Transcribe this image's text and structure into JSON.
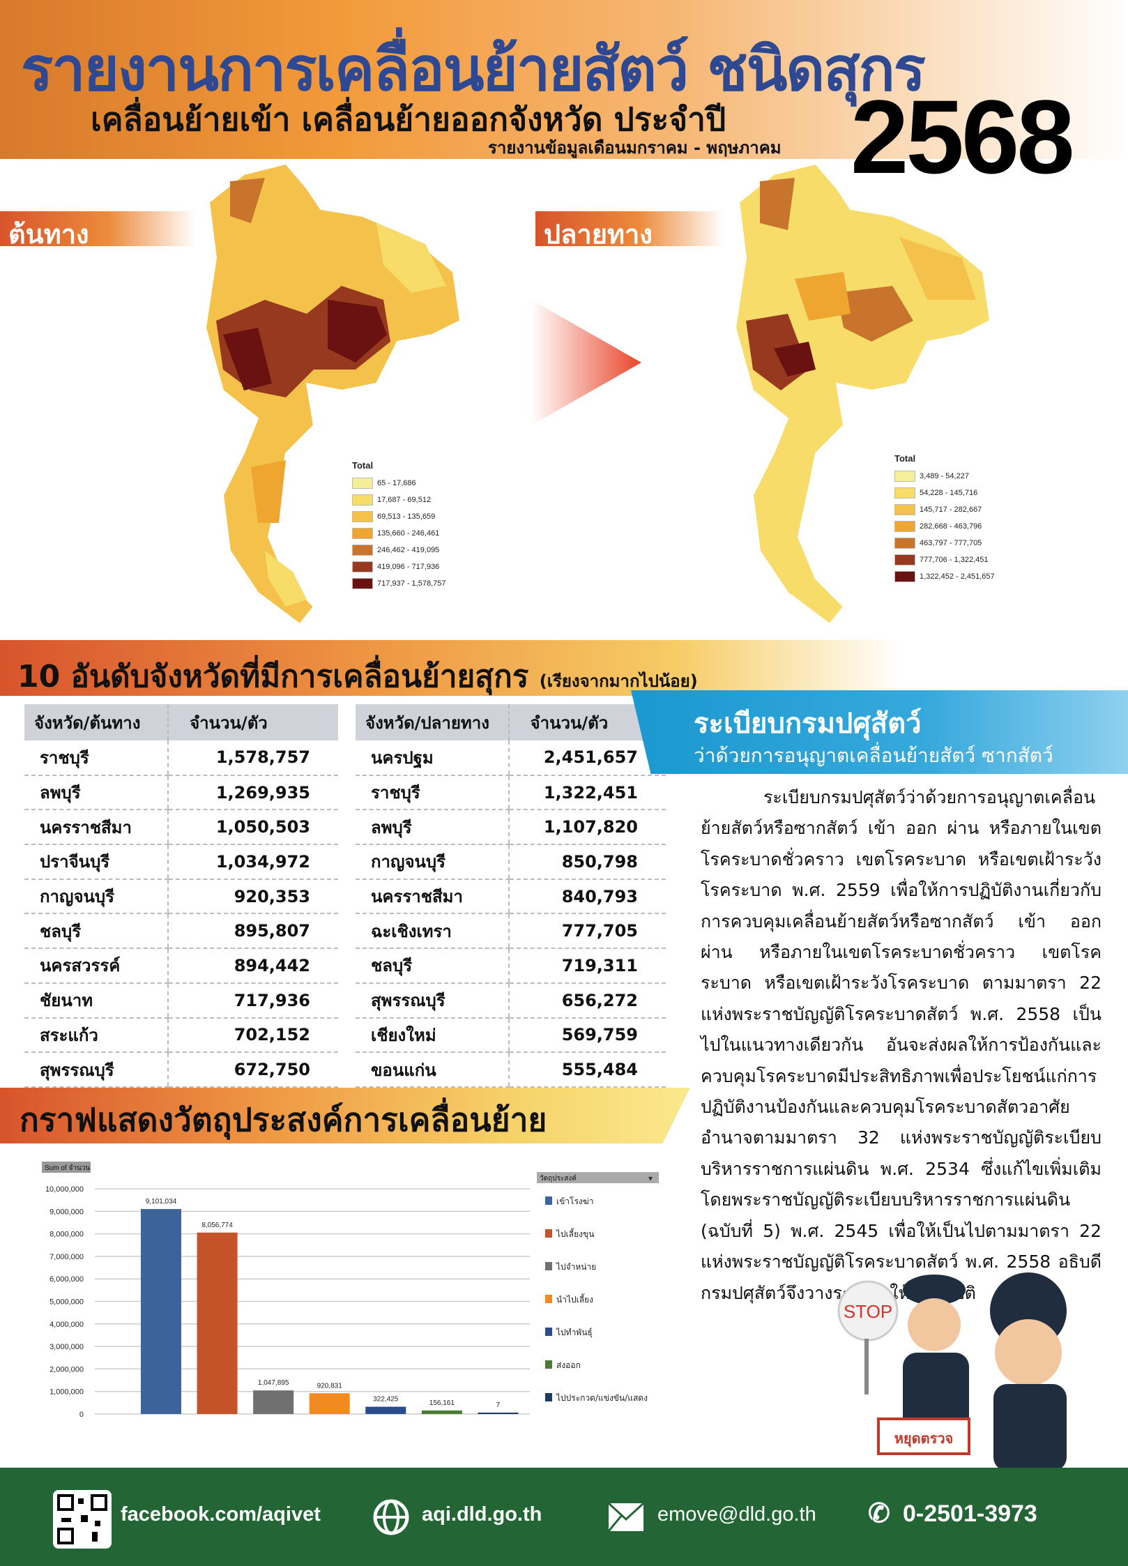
{
  "header": {
    "title": "รายงานการเคลื่อนย้ายสัตว์ ชนิดสุกร",
    "subtitle": "เคลื่อนย้ายเข้า เคลื่อนย้ายออกจังหวัด  ประจำปี",
    "year": "2568",
    "period": "รายงานข้อมูลเดือนมกราคม - พฤษภาคม"
  },
  "maps": {
    "origin": {
      "tag": "ต้นทาง",
      "legend_title": "Total",
      "legend": [
        {
          "range": "65 - 17,686",
          "color": "#f6ef9a"
        },
        {
          "range": "17,687 - 69,512",
          "color": "#f7dc69"
        },
        {
          "range": "69,513 - 135,659",
          "color": "#f4c14a"
        },
        {
          "range": "135,660 - 246,461",
          "color": "#eea630"
        },
        {
          "range": "246,462 - 419,095",
          "color": "#c9742c"
        },
        {
          "range": "419,096 - 717,936",
          "color": "#96391f"
        },
        {
          "range": "717,937 - 1,578,757",
          "color": "#6a1112"
        }
      ]
    },
    "destination": {
      "tag": "ปลายทาง",
      "legend_title": "Total",
      "legend": [
        {
          "range": "3,489 - 54,227",
          "color": "#f6ef9a"
        },
        {
          "range": "54,228 - 145,716",
          "color": "#f7dc69"
        },
        {
          "range": "145,717 - 282,667",
          "color": "#f4c14a"
        },
        {
          "range": "282,668 - 463,796",
          "color": "#eea630"
        },
        {
          "range": "463,797 - 777,705",
          "color": "#c9742c"
        },
        {
          "range": "777,706 - 1,322,451",
          "color": "#96391f"
        },
        {
          "range": "1,322,452 - 2,451,657",
          "color": "#6a1112"
        }
      ]
    }
  },
  "top10": {
    "title": "10 อันดับจังหวัดที่มีการเคลื่อนย้ายสุกร",
    "note": "(เรียงจากมากไปน้อย)",
    "origin": {
      "headers": [
        "จังหวัด/ต้นทาง",
        "จำนวน/ตัว"
      ],
      "rows": [
        [
          "ราชบุรี",
          "1,578,757"
        ],
        [
          "ลพบุรี",
          "1,269,935"
        ],
        [
          "นครราชสีมา",
          "1,050,503"
        ],
        [
          "ปราจีนบุรี",
          "1,034,972"
        ],
        [
          "กาญจนบุรี",
          "920,353"
        ],
        [
          "ชลบุรี",
          "895,807"
        ],
        [
          "นครสวรรค์",
          "894,442"
        ],
        [
          "ชัยนาท",
          "717,936"
        ],
        [
          "สระแก้ว",
          "702,152"
        ],
        [
          "สุพรรณบุรี",
          "672,750"
        ]
      ]
    },
    "destination": {
      "headers": [
        "จังหวัด/ปลายทาง",
        "จำนวน/ตัว"
      ],
      "rows": [
        [
          "นครปฐม",
          "2,451,657"
        ],
        [
          "ราชบุรี",
          "1,322,451"
        ],
        [
          "ลพบุรี",
          "1,107,820"
        ],
        [
          "กาญจนบุรี",
          "850,798"
        ],
        [
          "นครราชสีมา",
          "840,793"
        ],
        [
          "ฉะเชิงเทรา",
          "777,705"
        ],
        [
          "ชลบุรี",
          "719,311"
        ],
        [
          "สุพรรณบุรี",
          "656,272"
        ],
        [
          "เชียงใหม่",
          "569,759"
        ],
        [
          "ขอนแก่น",
          "555,484"
        ]
      ]
    }
  },
  "regulation": {
    "title": "ระเบียบกรมปศุสัตว์",
    "subtitle": "ว่าด้วยการอนุญาตเคลื่อนย้ายสัตว์ ซากสัตว์",
    "body": "ระเบียบกรมปศุสัตว์ว่าด้วยการอนุญาตเคลื่อนย้ายสัตว์หรือซากสัตว์ เข้า ออก ผ่าน หรือภายในเขตโรคระบาดชั่วคราว เขตโรคระบาด หรือเขตเฝ้าระวังโรคระบาด พ.ศ. 2559 เพื่อให้การปฏิบัติงานเกี่ยวกับการควบคุมเคลื่อนย้ายสัตว์หรือซากสัตว์ เข้า ออก ผ่าน หรือภายในเขตโรคระบาดชั่วคราว เขตโรคระบาด หรือเขตเฝ้าระวังโรคระบาด ตามมาตรา 22 แห่งพระราชบัญญัติโรคระบาดสัตว์ พ.ศ. 2558 เป็นไปในแนวทางเดียวกัน อันจะส่งผลให้การป้องกันและควบคุมโรคระบาดมีประสิทธิภาพเพื่อประโยชน์แก่การปฏิบัติงานป้องกันและควบคุมโรคระบาดสัตวอาศัยอำนาจตามมาตรา 32 แห่งพระราชบัญญัติระเบียบบริหารราชการแผ่นดิน พ.ศ. 2534 ซึ่งแก้ไขเพิ่มเติมโดยพระราชบัญญัติระเบียบบริหารราชการแผ่นดิน (ฉบับที่ 5) พ.ศ. 2545 เพื่อให้เป็นไปตามมาตรา 22 แห่งพระราชบัญญัติโรคระบาดสัตว์ พ.ศ. 2558 อธิบดีกรมปศุสัตว์จึงวางระเบียบให้ถือปฏิบัติ",
    "stop_sign": "STOP",
    "barrier_sign": "หยุดตรวจ"
  },
  "chart_section": {
    "title": "กราฟแสดงวัตถุประสงค์การเคลื่อนย้าย"
  },
  "chart_data": {
    "type": "bar",
    "ylabel": "Sum of จำนวน",
    "legend_title": "วัตถุประสงค์",
    "legend_position": "right",
    "ylim": [
      0,
      10000000
    ],
    "yticks": [
      "0",
      "1,000,000",
      "2,000,000",
      "3,000,000",
      "4,000,000",
      "5,000,000",
      "6,000,000",
      "7,000,000",
      "8,000,000",
      "9,000,000",
      "10,000,000"
    ],
    "grid": true,
    "series": [
      {
        "name": "เข้าโรงฆ่า",
        "value": 9101034,
        "label": "9,101,034",
        "color": "#3c649b"
      },
      {
        "name": "ไปเลี้ยงขุน",
        "value": 8056774,
        "label": "8,056,774",
        "color": "#c4532a"
      },
      {
        "name": "ไปจำหน่าย",
        "value": 1047895,
        "label": "1,047,895",
        "color": "#707070"
      },
      {
        "name": "นำไปเลี้ยง",
        "value": 920831,
        "label": "920,831",
        "color": "#f28a22"
      },
      {
        "name": "ไปทำพันธุ์",
        "value": 322425,
        "label": "322,425",
        "color": "#2c4b8c"
      },
      {
        "name": "ส่งออก",
        "value": 156161,
        "label": "156,161",
        "color": "#4b7c34"
      },
      {
        "name": "ไปประกวด/แข่งขัน/แสดง",
        "value": 7,
        "label": "7",
        "color": "#1d3c61"
      }
    ]
  },
  "footer": {
    "facebook": "facebook.com/aqivet",
    "website": "aqi.dld.go.th",
    "email": "emove@dld.go.th",
    "phone": "0-2501-3973"
  }
}
